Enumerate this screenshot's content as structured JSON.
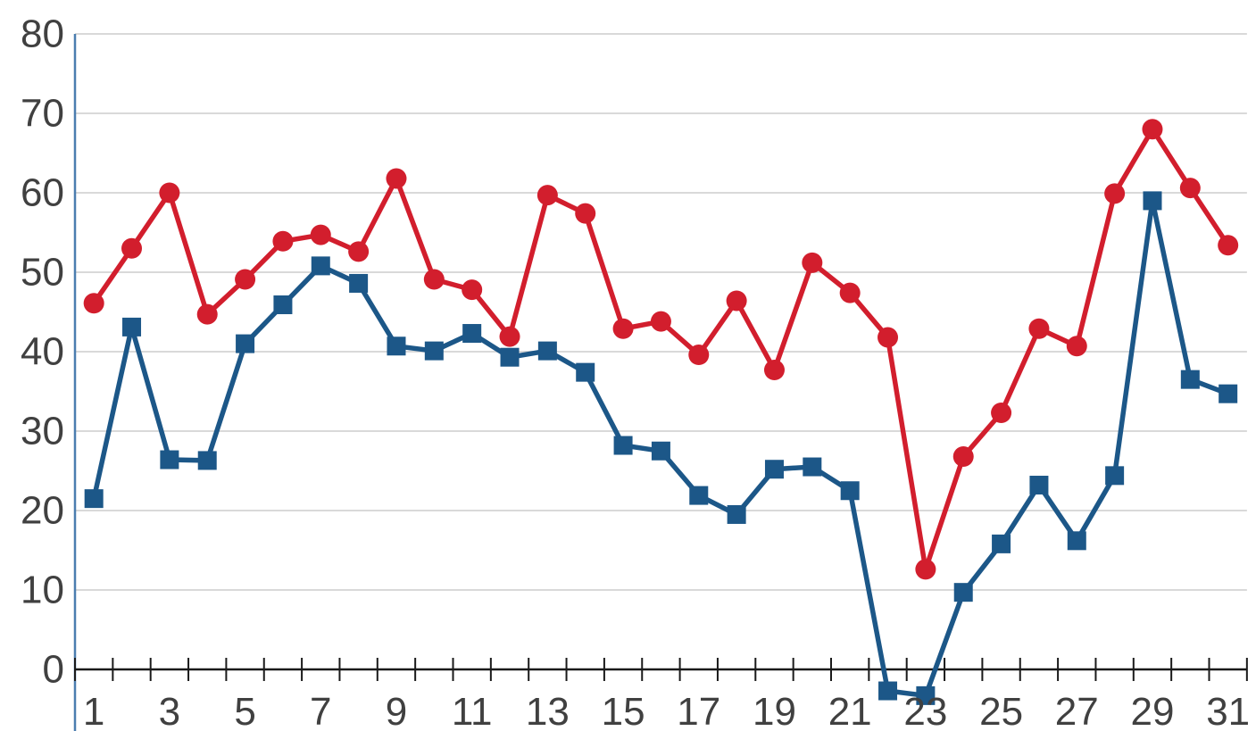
{
  "chart_data": {
    "type": "line",
    "title": "",
    "xlabel": "",
    "ylabel": "",
    "x": [
      1,
      2,
      3,
      4,
      5,
      6,
      7,
      8,
      9,
      10,
      11,
      12,
      13,
      14,
      15,
      16,
      17,
      18,
      19,
      20,
      21,
      22,
      23,
      24,
      25,
      26,
      27,
      28,
      29,
      30,
      31
    ],
    "series": [
      {
        "name": "red-series",
        "marker": "circle",
        "color": "#D21E2D",
        "values": [
          46.1,
          53.0,
          60.0,
          44.7,
          49.1,
          53.9,
          54.7,
          52.6,
          61.8,
          49.1,
          47.8,
          41.9,
          59.7,
          57.4,
          42.9,
          43.8,
          39.6,
          46.4,
          37.7,
          51.2,
          47.4,
          41.8,
          12.6,
          26.8,
          32.3,
          42.9,
          40.7,
          59.9,
          68.0,
          60.6,
          53.4
        ]
      },
      {
        "name": "blue-series",
        "marker": "square",
        "color": "#1C5788",
        "values": [
          21.5,
          43.1,
          26.4,
          26.3,
          41.0,
          45.9,
          50.8,
          48.6,
          40.7,
          40.1,
          42.3,
          39.3,
          40.1,
          37.4,
          28.2,
          27.5,
          21.9,
          19.5,
          25.2,
          25.5,
          22.5,
          -2.7,
          -3.3,
          9.7,
          15.8,
          23.2,
          16.2,
          24.4,
          59.0,
          36.5,
          34.7
        ]
      }
    ],
    "ylim": [
      0,
      80
    ],
    "ytick_step": 10,
    "ytick_labels": [
      "0",
      "10",
      "20",
      "30",
      "40",
      "50",
      "60",
      "70",
      "80"
    ],
    "xtick_labeled_days": [
      1,
      3,
      5,
      7,
      9,
      11,
      13,
      15,
      17,
      19,
      21,
      23,
      25,
      27,
      29,
      31
    ],
    "grid": "horizontal",
    "legend": "none",
    "colors": {
      "gridline": "#D9D9D9",
      "x_axis_line": "#1A1A1A",
      "y_axis_line": "#4B7DAF",
      "tick_label": "#404040",
      "background": "#FFFFFF"
    }
  }
}
